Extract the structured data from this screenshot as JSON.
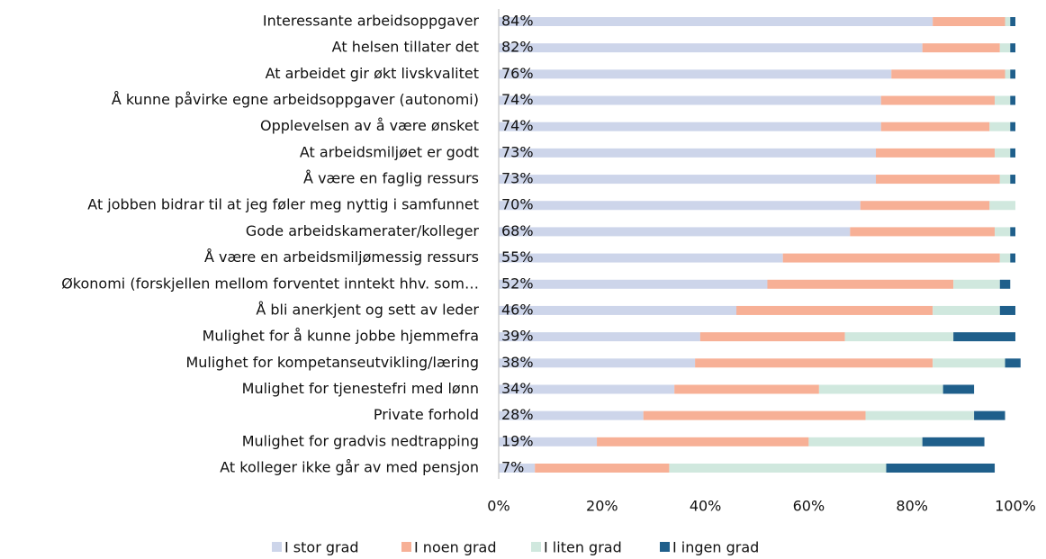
{
  "chart_data": {
    "type": "stacked_bar_horizontal",
    "categories": [
      "Interessante arbeidsoppgaver",
      "At helsen tillater det",
      "At arbeidet gir økt livskvalitet",
      "Å kunne påvirke egne arbeidsoppgaver (autonomi)",
      "Opplevelsen av å være ønsket",
      "At arbeidsmiljøet er godt",
      "Å være en faglig ressurs",
      "At jobben bidrar til at jeg føler meg nyttig i samfunnet",
      "Gode arbeidskamerater/kolleger",
      "Å være en arbeidsmiljømessig ressurs",
      "Økonomi (forskjellen mellom forventet inntekt hhv. som…",
      "Å bli anerkjent og sett av leder",
      "Mulighet for å kunne jobbe hjemmefra",
      "Mulighet for kompetanseutvikling/læring",
      "Mulighet for tjenestefri med lønn",
      "Private forhold",
      "Mulighet for gradvis nedtrapping",
      "At kolleger ikke går av med pensjon"
    ],
    "series": [
      {
        "name": "I stor grad",
        "color": "#cdd5ea",
        "values": [
          84,
          82,
          76,
          74,
          74,
          73,
          73,
          70,
          68,
          55,
          52,
          46,
          39,
          38,
          34,
          28,
          19,
          7
        ],
        "value_labels": [
          "84%",
          "82%",
          "76%",
          "74%",
          "74%",
          "73%",
          "73%",
          "70%",
          "68%",
          "55%",
          "52%",
          "46%",
          "39%",
          "38%",
          "34%",
          "28%",
          "19%",
          "7%"
        ]
      },
      {
        "name": "I noen grad",
        "color": "#f7b096",
        "values": [
          14,
          15,
          22,
          22,
          21,
          23,
          24,
          25,
          28,
          42,
          36,
          38,
          28,
          46,
          28,
          43,
          41,
          26
        ]
      },
      {
        "name": "I liten grad",
        "color": "#d0e8de",
        "values": [
          1,
          2,
          1,
          3,
          4,
          3,
          2,
          5,
          3,
          2,
          9,
          13,
          21,
          14,
          24,
          21,
          22,
          42
        ]
      },
      {
        "name": "I ingen grad",
        "color": "#1f5f8b",
        "values": [
          1,
          1,
          1,
          1,
          1,
          1,
          1,
          0,
          1,
          1,
          2,
          3,
          12,
          3,
          6,
          6,
          12,
          21
        ]
      }
    ],
    "xlim": [
      0,
      100
    ],
    "xticks": [
      {
        "value": 0,
        "label": "0%"
      },
      {
        "value": 20,
        "label": "20%"
      },
      {
        "value": 40,
        "label": "40%"
      },
      {
        "value": 60,
        "label": "60%"
      },
      {
        "value": 80,
        "label": "80%"
      },
      {
        "value": 100,
        "label": "100%"
      }
    ],
    "legend": "bottom"
  }
}
